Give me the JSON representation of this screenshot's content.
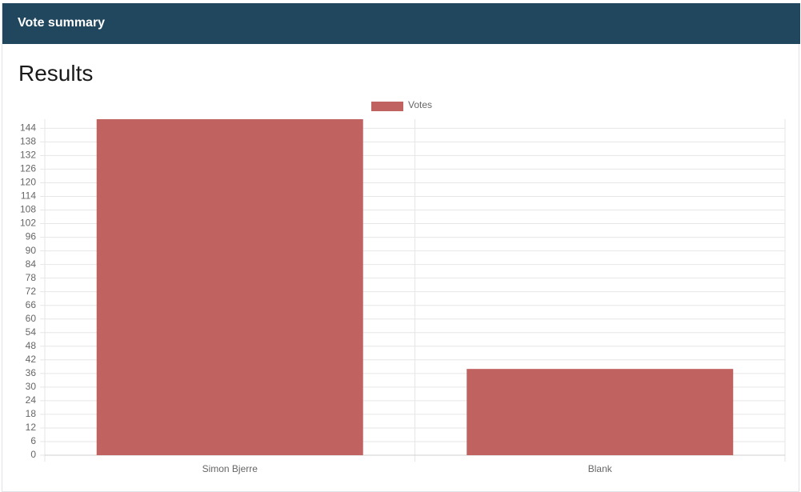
{
  "header": {
    "title": "Vote summary"
  },
  "card": {
    "title": "Results"
  },
  "chart_data": {
    "type": "bar",
    "categories": [
      "Simon Bjerre",
      "Blank"
    ],
    "series": [
      {
        "name": "Votes",
        "color": "#c06260",
        "values": [
          148,
          38
        ]
      }
    ],
    "ylim": [
      0,
      148
    ],
    "yticks": [
      0,
      6,
      12,
      18,
      24,
      30,
      36,
      42,
      48,
      54,
      60,
      66,
      72,
      78,
      84,
      90,
      96,
      102,
      108,
      114,
      120,
      126,
      132,
      138,
      144
    ],
    "grid": true
  }
}
